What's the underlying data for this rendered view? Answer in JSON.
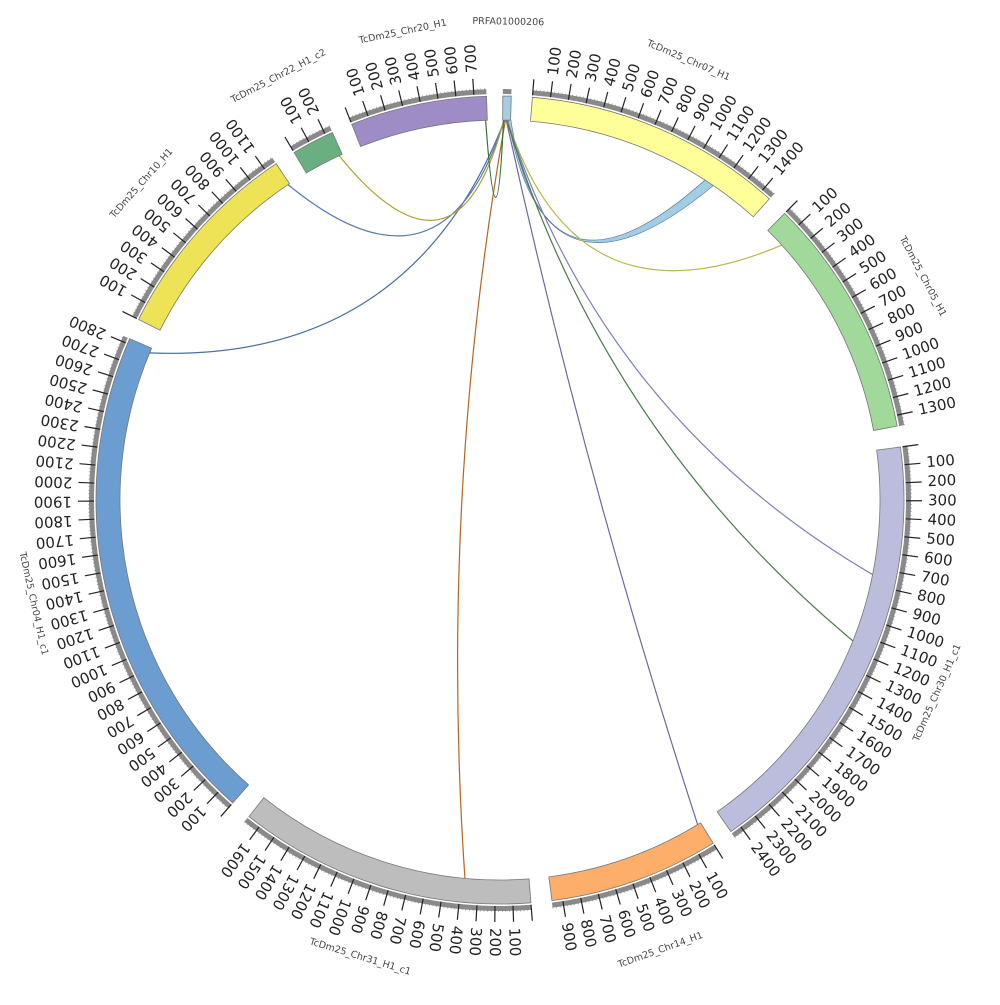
{
  "chart_data": {
    "type": "circos",
    "title": "",
    "unit": "",
    "segments": [
      {
        "id": "contig",
        "name": "PRFA01000206",
        "length": 20,
        "color": "#a6cee3",
        "ticks": []
      },
      {
        "id": "chr07",
        "name": "TcDm25_Chr07_H1",
        "length": 1460,
        "color": "#ffff99",
        "ticks": [
          "100",
          "200",
          "300",
          "400",
          "500",
          "600",
          "700",
          "800",
          "900",
          "1000",
          "1100",
          "1200",
          "1300",
          "1400"
        ]
      },
      {
        "id": "chr05",
        "name": "TcDm25_Chr05_H1",
        "length": 1360,
        "color": "#a1d99b",
        "ticks": [
          "100",
          "200",
          "300",
          "400",
          "500",
          "600",
          "700",
          "800",
          "900",
          "1000",
          "1100",
          "1200",
          "1300"
        ]
      },
      {
        "id": "chr30",
        "name": "TcDm25_Chr30_H1_c1",
        "length": 2460,
        "color": "#bcbddc",
        "ticks": [
          "100",
          "200",
          "300",
          "400",
          "500",
          "600",
          "700",
          "800",
          "900",
          "1000",
          "1100",
          "1200",
          "1300",
          "1400",
          "1500",
          "1600",
          "1700",
          "1800",
          "1900",
          "2000",
          "2100",
          "2200",
          "2300",
          "2400"
        ]
      },
      {
        "id": "chr14",
        "name": "TcDm25_Chr14_H1",
        "length": 960,
        "color": "#fdae6b",
        "ticks": [
          "100",
          "200",
          "300",
          "400",
          "500",
          "600",
          "700",
          "800",
          "900"
        ]
      },
      {
        "id": "chr31",
        "name": "TcDm25_Chr31_H1_c1",
        "length": 1680,
        "color": "#bdbdbd",
        "ticks": [
          "100",
          "200",
          "300",
          "400",
          "500",
          "600",
          "700",
          "800",
          "900",
          "1000",
          "1100",
          "1200",
          "1300",
          "1400",
          "1500",
          "1600"
        ]
      },
      {
        "id": "chr04",
        "name": "TcDm25_Chr04_H1_c1",
        "length": 2830,
        "color": "#6b9dd0",
        "ticks": [
          "100",
          "200",
          "300",
          "400",
          "500",
          "600",
          "700",
          "800",
          "900",
          "1000",
          "1100",
          "1200",
          "1300",
          "1400",
          "1500",
          "1600",
          "1700",
          "1800",
          "1900",
          "2000",
          "2100",
          "2200",
          "2300",
          "2400",
          "2500",
          "2600",
          "2700",
          "2800"
        ]
      },
      {
        "id": "chr10",
        "name": "TcDm25_Chr10_H1",
        "length": 1170,
        "color": "#eee257",
        "ticks": [
          "100",
          "200",
          "300",
          "400",
          "500",
          "600",
          "700",
          "800",
          "900",
          "1000",
          "1100"
        ]
      },
      {
        "id": "chr22",
        "name": "TcDm25_Chr22_H1_c2",
        "length": 240,
        "color": "#6aaf7f",
        "ticks": [
          "100",
          "200"
        ]
      },
      {
        "id": "chr20",
        "name": "TcDm25_Chr20_H1",
        "length": 770,
        "color": "#9e8cc6",
        "ticks": [
          "100",
          "200",
          "300",
          "400",
          "500",
          "600",
          "700"
        ]
      }
    ],
    "links": [
      {
        "from": "contig",
        "from_pos": 14,
        "to": "chr07",
        "to_pos": 1100,
        "to_end": 1160,
        "color": "#9ecae1"
      },
      {
        "from": "contig",
        "from_pos": 12,
        "to": "chr05",
        "to_pos": 120,
        "color": "#b8b84a"
      },
      {
        "from": "contig",
        "from_pos": 11,
        "to": "chr30",
        "to_pos": 740,
        "color": "#7b7fb8"
      },
      {
        "from": "contig",
        "from_pos": 10,
        "to": "chr30",
        "to_pos": 1150,
        "color": "#4a7a4a"
      },
      {
        "from": "contig",
        "from_pos": 9,
        "to": "chr14",
        "to_pos": 20,
        "color": "#6a6aa0"
      },
      {
        "from": "contig",
        "from_pos": 7,
        "to": "chr31",
        "to_pos": 380,
        "color": "#b5651d"
      },
      {
        "from": "contig",
        "from_pos": 5,
        "to": "chr04",
        "to_pos": 2800,
        "color": "#4a6fa0"
      },
      {
        "from": "contig",
        "from_pos": 4,
        "to": "chr10",
        "to_pos": 1160,
        "color": "#5a7ab0"
      },
      {
        "from": "contig",
        "from_pos": 3,
        "to": "chr22",
        "to_pos": 220,
        "color": "#b0a030"
      },
      {
        "from": "contig",
        "from_pos": 2,
        "to": "chr20",
        "to_pos": 760,
        "color": "#3c6e3c"
      }
    ]
  }
}
